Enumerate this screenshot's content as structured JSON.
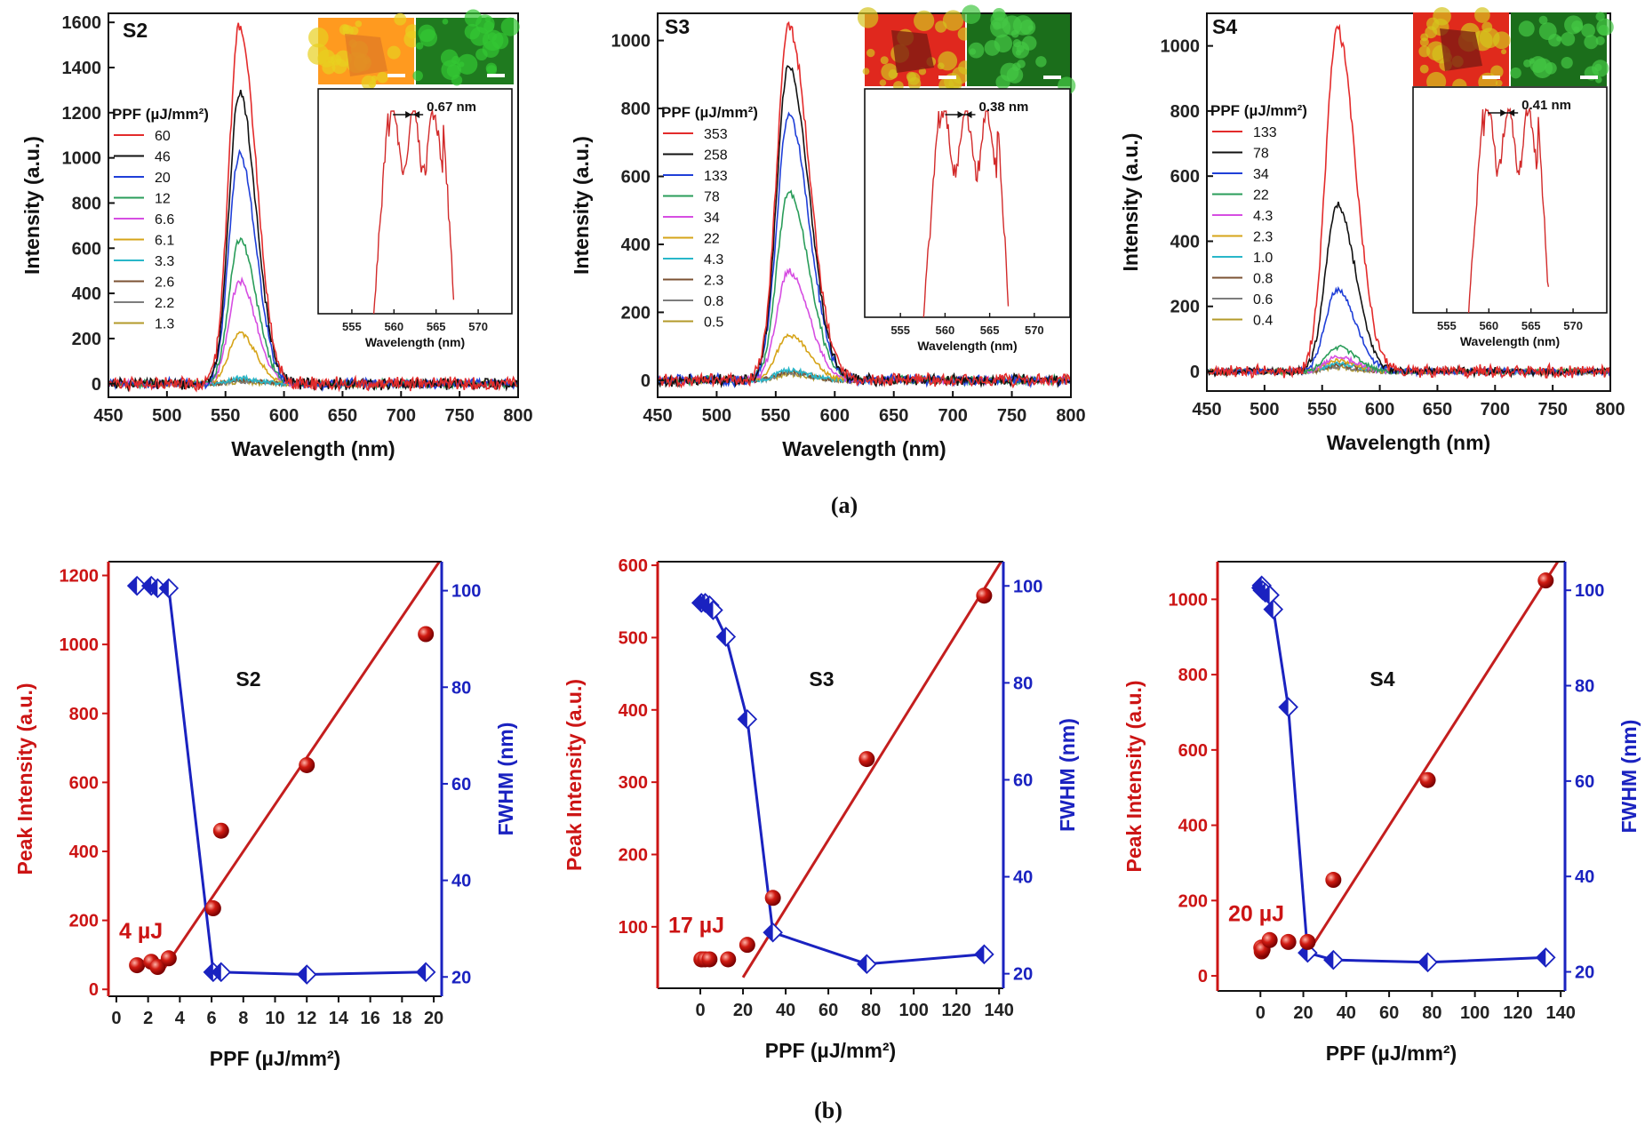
{
  "captions": {
    "a": "(a)",
    "b": "(b)"
  },
  "panel_a": {
    "xlabel": "Wavelength (nm)",
    "ylabel": "Intensity (a.u.)",
    "legend_title": "PPF (µJ/mm²)",
    "inset_xlabel": "Wavelength (nm)",
    "colors": [
      "#e32b2b",
      "#111111",
      "#1f3fd8",
      "#2a9d5a",
      "#d64ee2",
      "#d6a419",
      "#29b7c9",
      "#7b5233",
      "#7d7d7d",
      "#b39a2a"
    ]
  },
  "panel_b": {
    "xlabel": "PPF (µJ/mm²)",
    "ylabel_left": "Peak Intensity (a.u.)",
    "ylabel_right": "FWHM (nm)",
    "left_color": "#cc1414",
    "right_color": "#1a22c0"
  },
  "chart_data": [
    {
      "type": "line",
      "id": "a-S2",
      "label": "S2",
      "xlabel": "Wavelength (nm)",
      "ylabel": "Intensity (a.u.)",
      "xlim": [
        450,
        800
      ],
      "ylim": [
        -60,
        1640
      ],
      "xticks": [
        450,
        500,
        550,
        600,
        650,
        700,
        750,
        800
      ],
      "yticks": [
        0,
        200,
        400,
        600,
        800,
        1000,
        1200,
        1400,
        1600
      ],
      "peak_center": 562,
      "width_left": 9,
      "width_right": 14,
      "legend_title": "PPF (µJ/mm²)",
      "series": [
        {
          "name": "60",
          "peak": 1590
        },
        {
          "name": "46",
          "peak": 1290
        },
        {
          "name": "20",
          "peak": 1015
        },
        {
          "name": "12",
          "peak": 640
        },
        {
          "name": "6.6",
          "peak": 455
        },
        {
          "name": "6.1",
          "peak": 225
        },
        {
          "name": "3.3",
          "peak": 25
        },
        {
          "name": "2.6",
          "peak": 18
        },
        {
          "name": "2.2",
          "peak": 12
        },
        {
          "name": "1.3",
          "peak": 8
        }
      ],
      "inset": {
        "fwhm_label": "0.67 nm",
        "xticks": [
          555,
          560,
          565,
          570
        ],
        "xlim": [
          551,
          574
        ],
        "xlabel": "Wavelength (nm)"
      }
    },
    {
      "type": "line",
      "id": "a-S3",
      "label": "S3",
      "xlabel": "Wavelength (nm)",
      "ylabel": "Intensity (a.u.)",
      "xlim": [
        450,
        800
      ],
      "ylim": [
        -50,
        1080
      ],
      "xticks": [
        450,
        500,
        550,
        600,
        650,
        700,
        750,
        800
      ],
      "yticks": [
        0,
        200,
        400,
        600,
        800,
        1000
      ],
      "peak_center": 561,
      "width_left": 10,
      "width_right": 17,
      "legend_title": "PPF (µJ/mm²)",
      "series": [
        {
          "name": "353",
          "peak": 1045
        },
        {
          "name": "258",
          "peak": 925
        },
        {
          "name": "133",
          "peak": 780
        },
        {
          "name": "78",
          "peak": 550
        },
        {
          "name": "34",
          "peak": 320
        },
        {
          "name": "22",
          "peak": 135
        },
        {
          "name": "4.3",
          "peak": 30
        },
        {
          "name": "2.3",
          "peak": 25
        },
        {
          "name": "0.8",
          "peak": 22
        },
        {
          "name": "0.5",
          "peak": 18
        }
      ],
      "inset": {
        "fwhm_label": "0.38 nm",
        "xticks": [
          555,
          560,
          565,
          570
        ],
        "xlim": [
          551,
          574
        ],
        "xlabel": "Wavelength (nm)"
      }
    },
    {
      "type": "line",
      "id": "a-S4",
      "label": "S4",
      "xlabel": "Wavelength (nm)",
      "ylabel": "Intensity (a.u.)",
      "xlim": [
        450,
        800
      ],
      "ylim": [
        -60,
        1100
      ],
      "xticks": [
        450,
        500,
        550,
        600,
        650,
        700,
        750,
        800
      ],
      "yticks": [
        0,
        200,
        400,
        600,
        800,
        1000
      ],
      "peak_center": 563,
      "width_left": 10,
      "width_right": 16,
      "legend_title": "PPF (µJ/mm²)",
      "series": [
        {
          "name": "133",
          "peak": 1050
        },
        {
          "name": "78",
          "peak": 510
        },
        {
          "name": "34",
          "peak": 250
        },
        {
          "name": "22",
          "peak": 75
        },
        {
          "name": "4.3",
          "peak": 45
        },
        {
          "name": "2.3",
          "peak": 35
        },
        {
          "name": "1.0",
          "peak": 25
        },
        {
          "name": "0.8",
          "peak": 20
        },
        {
          "name": "0.6",
          "peak": 15
        },
        {
          "name": "0.4",
          "peak": 12
        }
      ],
      "inset": {
        "fwhm_label": "0.41 nm",
        "xticks": [
          555,
          560,
          565,
          570
        ],
        "xlim": [
          551,
          574
        ],
        "xlabel": "Wavelength (nm)"
      }
    },
    {
      "type": "scatter",
      "id": "b-S2",
      "label": "S2",
      "xlabel": "PPF (µJ/mm²)",
      "ylabel": "Peak Intensity (a.u.)",
      "ylabel2": "FWHM (nm)",
      "xlim": [
        -0.5,
        20.5
      ],
      "ylim": [
        -20,
        1240
      ],
      "y2lim": [
        16,
        106
      ],
      "xticks": [
        0,
        2,
        4,
        6,
        8,
        10,
        12,
        14,
        16,
        18,
        20
      ],
      "yticks": [
        0,
        200,
        400,
        600,
        800,
        1000,
        1200
      ],
      "y2ticks": [
        20,
        40,
        60,
        80,
        100
      ],
      "threshold_label": "4 µJ",
      "peak_intensity": [
        [
          1.3,
          70
        ],
        [
          2.2,
          80
        ],
        [
          2.6,
          65
        ],
        [
          3.3,
          90
        ],
        [
          6.1,
          235
        ],
        [
          6.6,
          460
        ],
        [
          12,
          650
        ],
        [
          19.5,
          1030
        ]
      ],
      "fit_line": [
        [
          3.0,
          60
        ],
        [
          20.5,
          1250
        ]
      ],
      "fwhm": [
        [
          1.3,
          101
        ],
        [
          2.2,
          101
        ],
        [
          2.6,
          100.5
        ],
        [
          3.3,
          100.5
        ],
        [
          6.1,
          21
        ],
        [
          6.6,
          21
        ],
        [
          12,
          20.5
        ],
        [
          19.5,
          21
        ]
      ]
    },
    {
      "type": "scatter",
      "id": "b-S3",
      "label": "S3",
      "xlabel": "PPF (µJ/mm²)",
      "ylabel": "Peak Intensity (a.u.)",
      "ylabel2": "FWHM (nm)",
      "xlim": [
        -20,
        142
      ],
      "ylim": [
        15,
        605
      ],
      "y2lim": [
        17,
        105
      ],
      "xticks": [
        0,
        20,
        40,
        60,
        80,
        100,
        120,
        140
      ],
      "yticks": [
        100,
        200,
        300,
        400,
        500,
        600
      ],
      "y2ticks": [
        20,
        40,
        60,
        80,
        100
      ],
      "threshold_label": "17 µJ",
      "peak_intensity": [
        [
          0.5,
          55
        ],
        [
          0.8,
          55
        ],
        [
          2.3,
          55
        ],
        [
          4.3,
          55
        ],
        [
          13,
          55
        ],
        [
          22,
          75
        ],
        [
          34,
          140
        ],
        [
          78,
          332
        ],
        [
          133,
          558
        ]
      ],
      "fit_line": [
        [
          20,
          30
        ],
        [
          142,
          610
        ]
      ],
      "fwhm": [
        [
          0.5,
          96.5
        ],
        [
          2.3,
          96.5
        ],
        [
          4.3,
          96
        ],
        [
          6,
          95
        ],
        [
          12,
          89.5
        ],
        [
          22,
          72.5
        ],
        [
          34,
          28.5
        ],
        [
          78,
          22
        ],
        [
          133,
          24
        ]
      ]
    },
    {
      "type": "scatter",
      "id": "b-S4",
      "label": "S4",
      "xlabel": "PPF (µJ/mm²)",
      "ylabel": "Peak Intensity (a.u.)",
      "ylabel2": "FWHM (nm)",
      "xlim": [
        -20,
        142
      ],
      "ylim": [
        -40,
        1100
      ],
      "y2lim": [
        16,
        106
      ],
      "xticks": [
        0,
        20,
        40,
        60,
        80,
        100,
        120,
        140
      ],
      "yticks": [
        0,
        200,
        400,
        600,
        800,
        1000
      ],
      "y2ticks": [
        20,
        40,
        60,
        80,
        100
      ],
      "threshold_label": "20 µJ",
      "peak_intensity": [
        [
          0.4,
          75
        ],
        [
          0.6,
          65
        ],
        [
          1.0,
          70
        ],
        [
          4.3,
          95
        ],
        [
          13,
          90
        ],
        [
          22,
          90
        ],
        [
          34,
          255
        ],
        [
          78,
          520
        ],
        [
          133,
          1050
        ]
      ],
      "fit_line": [
        [
          22,
          60
        ],
        [
          142,
          1130
        ]
      ],
      "fwhm": [
        [
          0.4,
          100.5
        ],
        [
          0.6,
          101
        ],
        [
          1.0,
          100
        ],
        [
          2.3,
          99.5
        ],
        [
          4.3,
          99
        ],
        [
          6,
          96
        ],
        [
          13,
          75.5
        ],
        [
          22,
          24
        ],
        [
          34,
          22.5
        ],
        [
          78,
          22
        ],
        [
          133,
          23
        ]
      ]
    }
  ]
}
